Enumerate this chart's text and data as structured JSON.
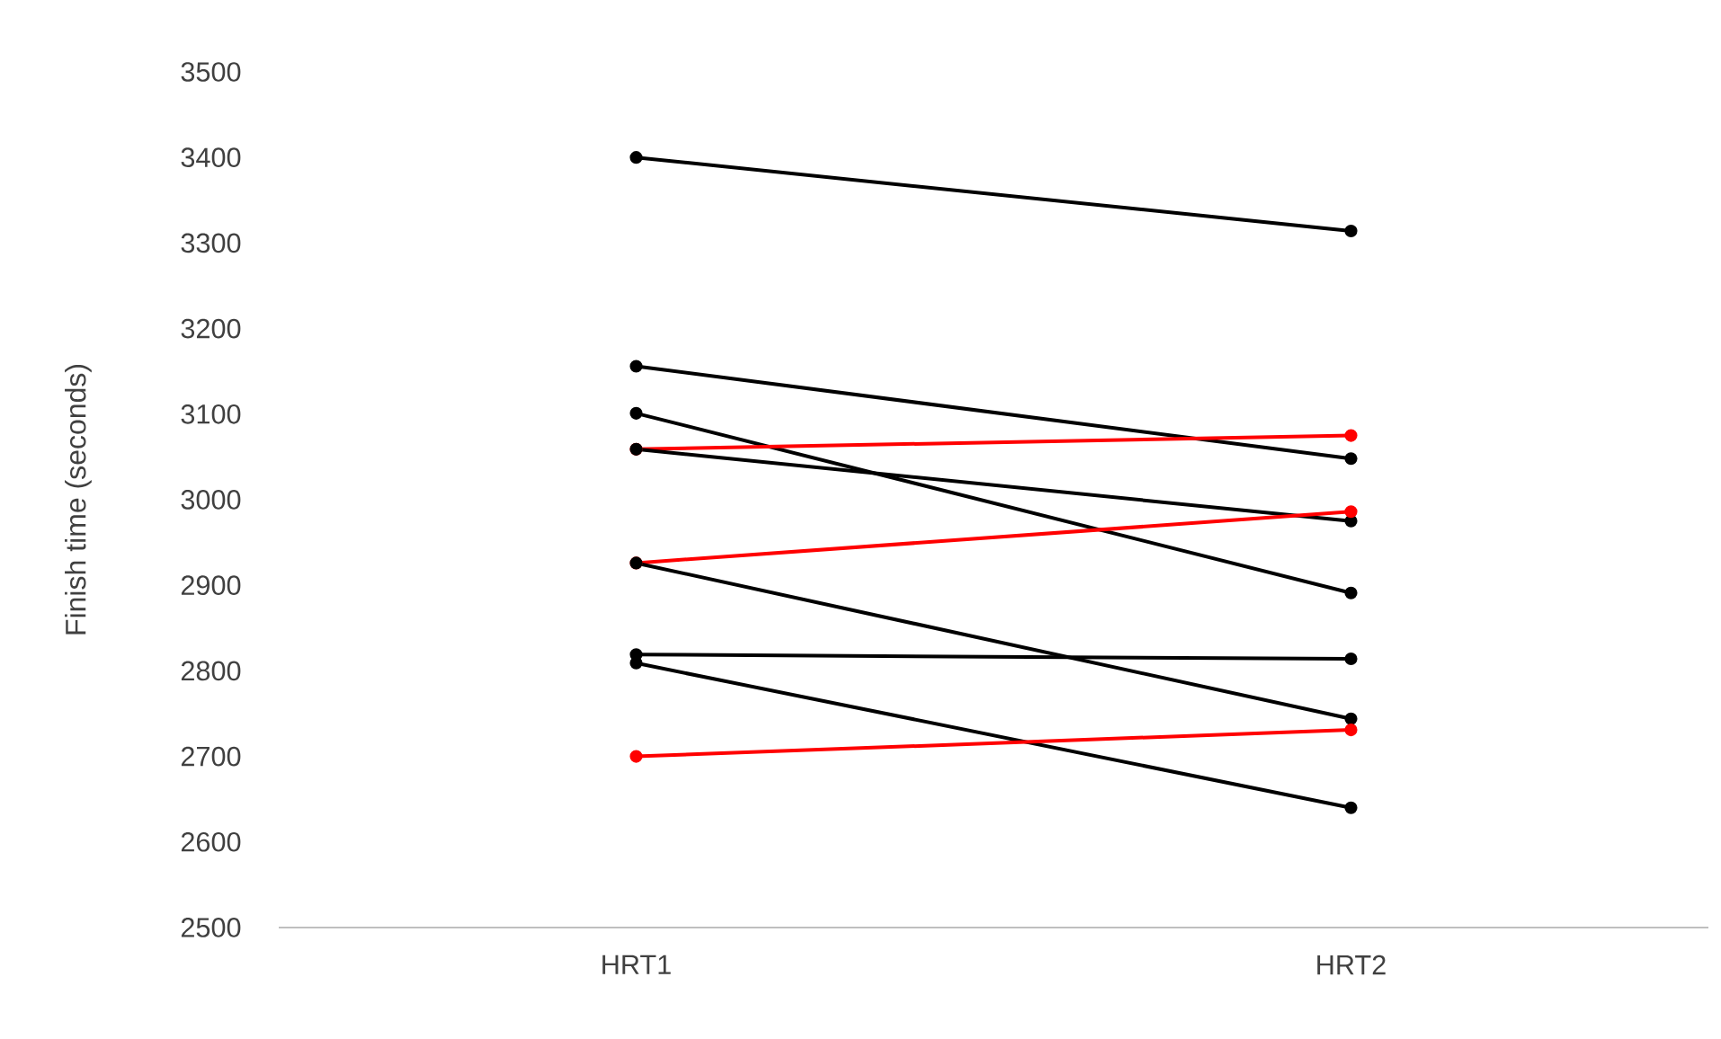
{
  "chart_data": {
    "type": "line",
    "ylabel": "Finish time (seconds)",
    "categories": [
      "HRT1",
      "HRT2"
    ],
    "ylim": [
      2500,
      3500
    ],
    "yticks": [
      2500,
      2600,
      2700,
      2800,
      2900,
      3000,
      3100,
      3200,
      3300,
      3400,
      3500
    ],
    "grid": false,
    "marker": "circle",
    "line_style": "solid",
    "series": [
      {
        "color": "#000000",
        "values": [
          3400,
          3314
        ]
      },
      {
        "color": "#000000",
        "values": [
          3156,
          3048
        ]
      },
      {
        "color": "#000000",
        "values": [
          3101,
          2891
        ]
      },
      {
        "color": "#ff0000",
        "values": [
          3059,
          3075
        ]
      },
      {
        "color": "#000000",
        "values": [
          3059,
          2975
        ]
      },
      {
        "color": "#ff0000",
        "values": [
          2926,
          2986
        ]
      },
      {
        "color": "#000000",
        "values": [
          2926,
          2744
        ]
      },
      {
        "color": "#000000",
        "values": [
          2819,
          2814
        ]
      },
      {
        "color": "#000000",
        "values": [
          2809,
          2640
        ]
      },
      {
        "color": "#ff0000",
        "values": [
          2700,
          2731
        ]
      }
    ]
  }
}
